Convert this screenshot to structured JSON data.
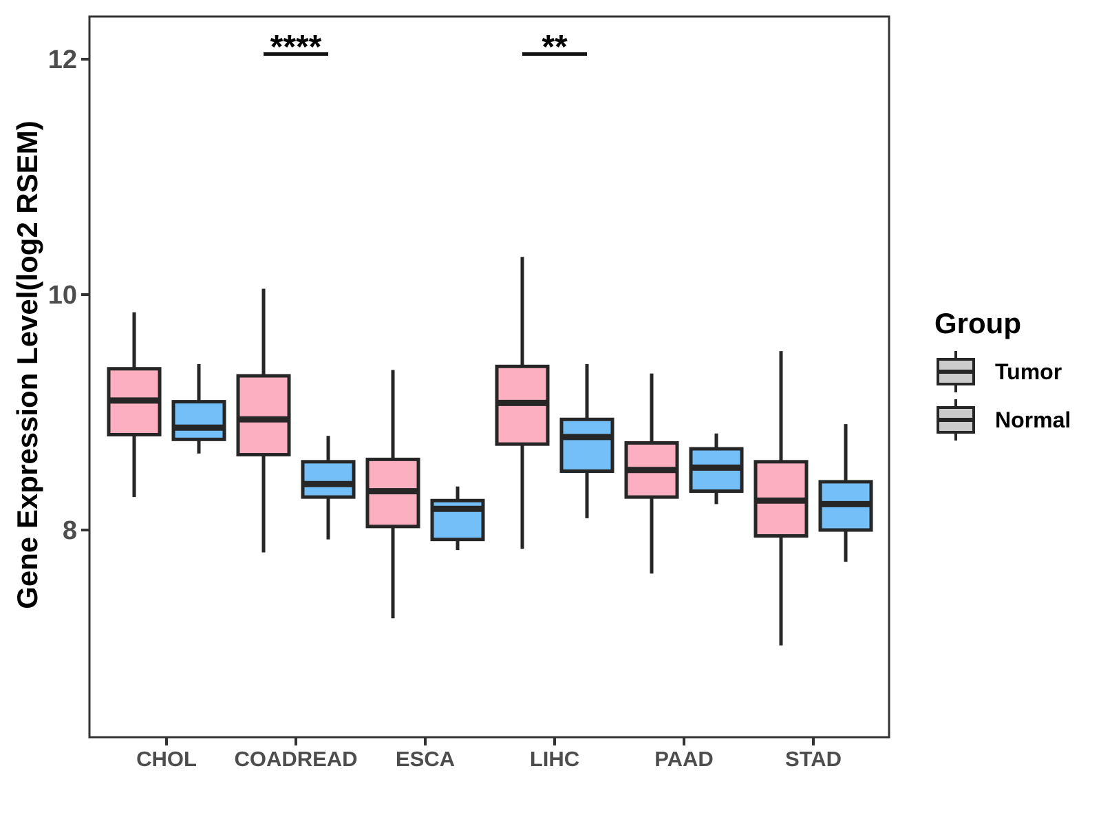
{
  "chart_data": {
    "type": "boxplot",
    "title": "",
    "xlabel": "",
    "ylabel": "Gene Expression Level(log2 RSEM)",
    "legend_title": "Group",
    "legend_position": "right",
    "grid": "off",
    "categories": [
      "CHOL",
      "COADREAD",
      "ESCA",
      "LIHC",
      "PAAD",
      "STAD"
    ],
    "groups": [
      "Tumor",
      "Normal"
    ],
    "colors": {
      "Tumor": "#FCAFC1",
      "Normal": "#74BFF7"
    },
    "yticks": [
      8,
      10,
      12
    ],
    "ylim": [
      6.24,
      12.37
    ],
    "series": [
      {
        "name": "Tumor",
        "boxes": [
          {
            "category": "CHOL",
            "whisker_low": 8.28,
            "q1": 8.81,
            "median": 9.1,
            "q3": 9.37,
            "whisker_high": 9.85
          },
          {
            "category": "COADREAD",
            "whisker_low": 7.81,
            "q1": 8.64,
            "median": 8.94,
            "q3": 9.31,
            "whisker_high": 10.05
          },
          {
            "category": "ESCA",
            "whisker_low": 7.25,
            "q1": 8.03,
            "median": 8.33,
            "q3": 8.6,
            "whisker_high": 9.36
          },
          {
            "category": "LIHC",
            "whisker_low": 7.84,
            "q1": 8.73,
            "median": 9.08,
            "q3": 9.39,
            "whisker_high": 10.32
          },
          {
            "category": "PAAD",
            "whisker_low": 7.63,
            "q1": 8.28,
            "median": 8.51,
            "q3": 8.74,
            "whisker_high": 9.33
          },
          {
            "category": "STAD",
            "whisker_low": 7.02,
            "q1": 7.95,
            "median": 8.25,
            "q3": 8.58,
            "whisker_high": 9.52
          }
        ]
      },
      {
        "name": "Normal",
        "boxes": [
          {
            "category": "CHOL",
            "whisker_low": 8.65,
            "q1": 8.77,
            "median": 8.87,
            "q3": 9.09,
            "whisker_high": 9.41
          },
          {
            "category": "COADREAD",
            "whisker_low": 7.92,
            "q1": 8.28,
            "median": 8.39,
            "q3": 8.58,
            "whisker_high": 8.8
          },
          {
            "category": "ESCA",
            "whisker_low": 7.83,
            "q1": 7.92,
            "median": 8.18,
            "q3": 8.25,
            "whisker_high": 8.37
          },
          {
            "category": "LIHC",
            "whisker_low": 8.1,
            "q1": 8.5,
            "median": 8.79,
            "q3": 8.94,
            "whisker_high": 9.41
          },
          {
            "category": "PAAD",
            "whisker_low": 8.22,
            "q1": 8.33,
            "median": 8.53,
            "q3": 8.69,
            "whisker_high": 8.82
          },
          {
            "category": "STAD",
            "whisker_low": 7.73,
            "q1": 8.0,
            "median": 8.22,
            "q3": 8.41,
            "whisker_high": 8.9
          }
        ]
      }
    ],
    "significance": [
      {
        "category": "COADREAD",
        "label": "****"
      },
      {
        "category": "LIHC",
        "label": "**"
      }
    ]
  },
  "styles": {
    "box_outline": "#262626",
    "axis_color": "#333333",
    "tick_label_color": "#4d4d4d",
    "text_color": "#000000",
    "annotation_color": "#111111",
    "panel_background": "#ffffff"
  }
}
